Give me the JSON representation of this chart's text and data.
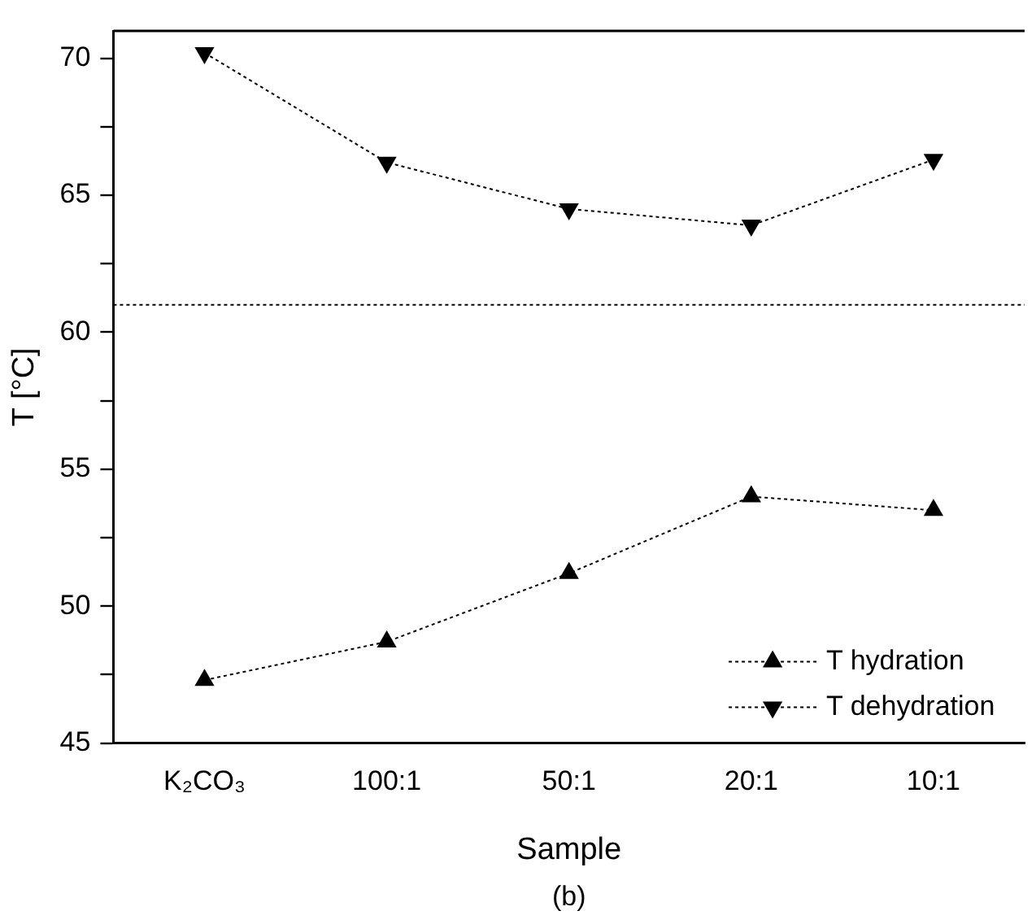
{
  "chart_data": {
    "type": "line",
    "xlabel": "Sample",
    "ylabel": "T [°C]",
    "categories": [
      "K₂CO₃",
      "100:1",
      "50:1",
      "20:1",
      "10:1"
    ],
    "series": [
      {
        "name": "T hydration",
        "color": "#000000",
        "marker": "triangle",
        "values": [
          47.3,
          48.7,
          51.2,
          54.0,
          53.5
        ]
      },
      {
        "name": "T dehydration",
        "color": "#000000",
        "marker": "triangle-down",
        "values": [
          70.2,
          66.2,
          64.5,
          63.9,
          66.3
        ]
      }
    ],
    "ylim": [
      45,
      71
    ],
    "yticks": [
      45,
      {
        "value": 47.5,
        "label": null
      },
      50,
      {
        "value": 52.5,
        "label": null
      },
      55,
      {
        "value": 57.5,
        "label": null
      },
      60,
      {
        "value": 62.5,
        "label": null
      },
      65,
      {
        "value": 67.5,
        "label": null
      },
      70
    ],
    "ref_lines": [
      {
        "axis": "y",
        "value": 61.0,
        "line_style": "dotted",
        "color": "#000000"
      }
    ],
    "annotations": [
      "(b)"
    ],
    "legend": "bottom right",
    "grid": false,
    "line_style": "dotted"
  }
}
